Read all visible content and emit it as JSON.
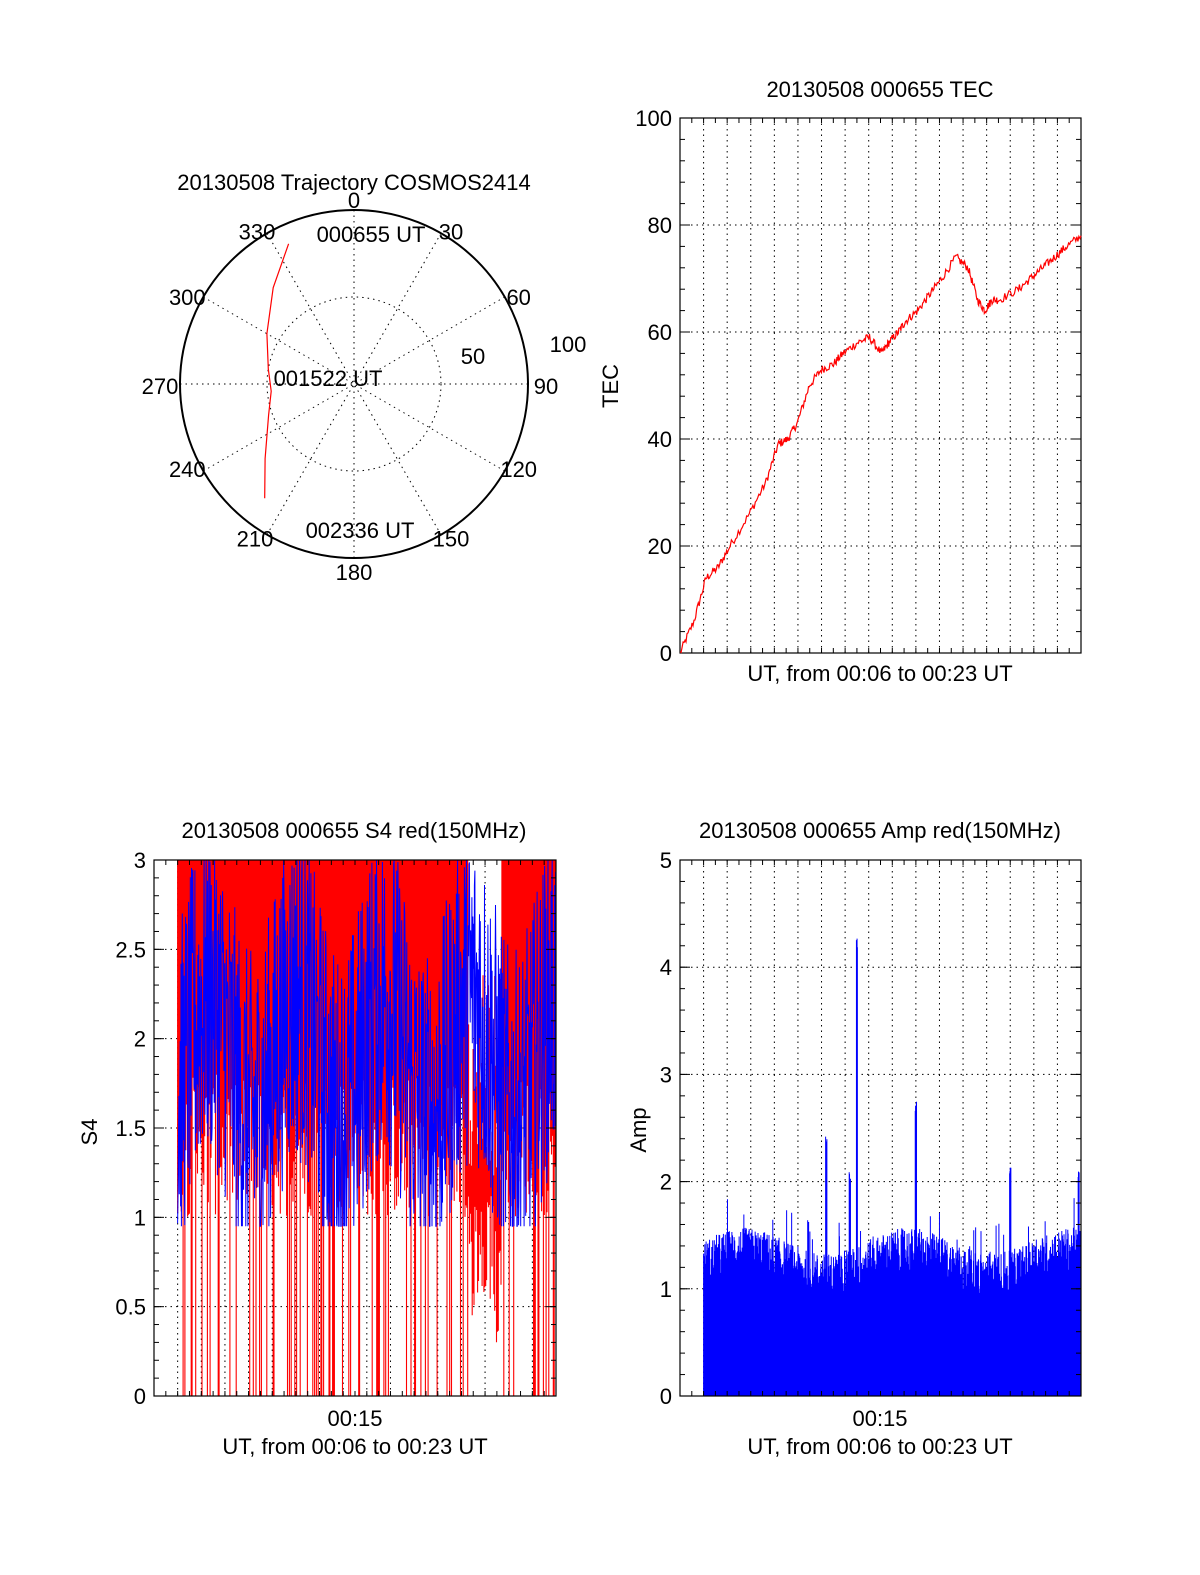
{
  "colors": {
    "red": "#ff0000",
    "blue": "#0000ff",
    "axis": "#000000"
  },
  "chart_data": [
    {
      "type": "polar",
      "title": "20130508 Trajectory COSMOS2414",
      "azimuth_labels": [
        "0",
        "30",
        "60",
        "90",
        "120",
        "150",
        "180",
        "210",
        "240",
        "270",
        "300",
        "330"
      ],
      "radial_labels": [
        "50",
        "100"
      ],
      "trajectory": {
        "azimuth_deg": [
          335,
          320,
          300,
          280,
          265,
          250,
          230,
          218
        ],
        "elevation_deg": [
          10,
          25,
          38,
          45,
          47,
          43,
          30,
          15
        ],
        "labels": [
          "000655 UT",
          "001522 UT",
          "002336 UT"
        ]
      }
    },
    {
      "type": "line",
      "title": "20130508 000655 TEC",
      "ylabel": "TEC",
      "xlabel": "UT, from 00:06 to 00:23 UT",
      "ylim": [
        0,
        100
      ],
      "yticks": [
        "0",
        "20",
        "40",
        "60",
        "80",
        "100"
      ],
      "xlim_min": [
        6.917,
        23.6
      ],
      "series": [
        {
          "name": "TEC",
          "x": [
            6.92,
            7.5,
            8.0,
            8.5,
            9.0,
            9.8,
            10.5,
            11.0,
            11.4,
            11.8,
            12.3,
            12.8,
            13.3,
            13.7,
            14.3,
            14.8,
            15.3,
            15.6,
            16.0,
            16.3,
            16.8,
            17.3,
            17.8,
            18.4,
            18.9,
            19.3,
            19.6,
            19.9,
            20.2,
            21.0,
            21.5,
            22.0,
            22.5,
            23.0,
            23.6
          ],
          "y": [
            0,
            6,
            14,
            16,
            20,
            26,
            32,
            39,
            40,
            43,
            50,
            53,
            54,
            56,
            58,
            59,
            56,
            58,
            60,
            62,
            64,
            67,
            70,
            74,
            72,
            66,
            64,
            66,
            66,
            68,
            70,
            72,
            74,
            76,
            78
          ]
        }
      ]
    },
    {
      "type": "line",
      "title": "20130508 000655 S4 red(150MHz)",
      "ylabel": "S4",
      "xlabel": "UT, from 00:06 to 00:23 UT",
      "xtick_label": "00:15",
      "ylim": [
        0,
        3
      ],
      "yticks": [
        "0",
        "0.5",
        "1",
        "1.5",
        "2",
        "2.5",
        "3"
      ],
      "xlim_min": [
        6.0,
        23.0
      ],
      "series": [
        {
          "name": "red",
          "x": [
            7.0,
            23.0
          ],
          "y_range": [
            0,
            3
          ]
        },
        {
          "name": "blue",
          "x": [
            7.0,
            23.0
          ],
          "y_range": [
            0.95,
            3
          ]
        }
      ]
    },
    {
      "type": "bar",
      "title": "20130508 000655 Amp red(150MHz)",
      "ylabel": "Amp",
      "xlabel": "UT, from 00:06 to 00:23 UT",
      "xtick_label": "00:15",
      "ylim": [
        0,
        5
      ],
      "yticks": [
        "0",
        "1",
        "2",
        "3",
        "4",
        "5"
      ],
      "xlim_min": [
        6.0,
        23.0
      ],
      "series": [
        {
          "name": "Amp",
          "x_range": [
            7.0,
            23.0
          ],
          "baseline_level": [
            1.15,
            1.5
          ],
          "peaks": [
            {
              "x": 12.2,
              "y": 2.45
            },
            {
              "x": 13.2,
              "y": 2.1
            },
            {
              "x": 13.5,
              "y": 4.28
            },
            {
              "x": 16.0,
              "y": 2.75
            },
            {
              "x": 20.0,
              "y": 2.15
            },
            {
              "x": 22.9,
              "y": 2.1
            }
          ]
        }
      ]
    }
  ]
}
